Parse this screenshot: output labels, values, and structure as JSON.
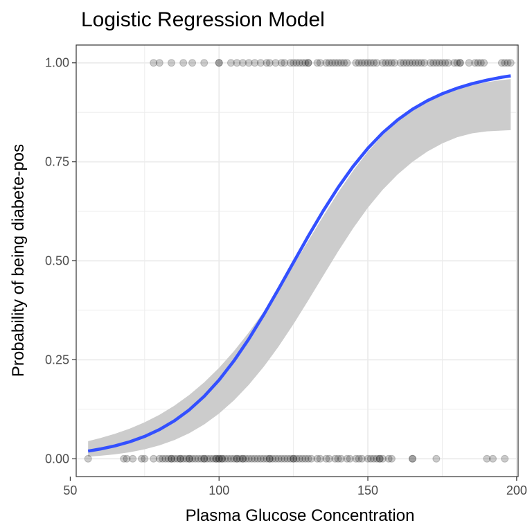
{
  "chart_data": {
    "type": "scatter",
    "title": "Logistic Regression Model",
    "xlabel": "Plasma Glucose Concentration",
    "ylabel": "Probability of being diabete-pos",
    "xlim": [
      52,
      200.5
    ],
    "ylim": [
      -0.045,
      1.045
    ],
    "x_ticks": [
      50,
      100,
      150,
      200
    ],
    "x_tick_labels": [
      "50",
      "100",
      "150",
      "200"
    ],
    "y_ticks": [
      0,
      0.25,
      0.5,
      0.75,
      1
    ],
    "y_tick_labels": [
      "0.00",
      "0.25",
      "0.50",
      "0.75",
      "1.00"
    ],
    "grid": true,
    "legend": "none",
    "colors": {
      "points": "#000000",
      "fit_line": "#3350ff",
      "confidence_band": "#cccccc",
      "grid": "#ebebeb",
      "panel_border": "#333333"
    },
    "series": [
      {
        "kind": "points",
        "y": 1,
        "x": [
          78,
          80,
          84,
          88,
          91,
          95,
          100,
          100,
          104,
          106,
          108,
          110,
          112,
          114,
          116,
          117,
          119,
          121,
          122,
          124,
          125,
          126,
          127,
          128,
          129,
          130,
          130,
          133,
          134,
          136,
          137,
          138,
          139,
          140,
          141,
          142,
          143,
          146,
          147,
          148,
          149,
          150,
          151,
          152,
          153,
          155,
          156,
          157,
          158,
          159,
          161,
          162,
          163,
          164,
          165,
          166,
          167,
          168,
          169,
          171,
          172,
          173,
          174,
          175,
          176,
          177,
          179,
          180,
          181,
          181,
          184,
          186,
          187,
          188,
          189,
          195,
          196,
          197,
          198
        ]
      },
      {
        "kind": "points",
        "y": 0,
        "x": [
          56,
          68,
          69,
          71,
          74,
          75,
          78,
          80,
          81,
          82,
          83,
          84,
          84,
          85,
          86,
          87,
          87,
          88,
          89,
          90,
          90,
          91,
          92,
          93,
          94,
          95,
          95,
          96,
          97,
          98,
          99,
          99,
          100,
          100,
          101,
          101,
          102,
          103,
          104,
          105,
          106,
          106,
          107,
          108,
          108,
          109,
          110,
          111,
          112,
          113,
          114,
          115,
          116,
          117,
          117,
          118,
          119,
          120,
          121,
          122,
          123,
          124,
          125,
          125,
          126,
          127,
          128,
          129,
          130,
          131,
          133,
          134,
          136,
          137,
          139,
          140,
          141,
          143,
          144,
          146,
          147,
          148,
          150,
          151,
          152,
          153,
          154,
          154,
          155,
          157,
          158,
          165,
          165,
          173,
          190,
          192,
          196
        ]
      },
      {
        "kind": "fit",
        "x": [
          56,
          60,
          65,
          70,
          75,
          80,
          85,
          90,
          95,
          100,
          105,
          110,
          115,
          120,
          125,
          130,
          135,
          140,
          145,
          150,
          155,
          160,
          165,
          170,
          175,
          180,
          185,
          190,
          195,
          198
        ],
        "y": [
          0.0194,
          0.0245,
          0.0325,
          0.0429,
          0.0564,
          0.0738,
          0.0959,
          0.1236,
          0.1577,
          0.1989,
          0.2473,
          0.3026,
          0.3637,
          0.4289,
          0.4959,
          0.5625,
          0.6262,
          0.6852,
          0.7381,
          0.7842,
          0.8234,
          0.856,
          0.8828,
          0.9045,
          0.922,
          0.936,
          0.9473,
          0.9563,
          0.9636,
          0.9671
        ],
        "comment_free_placeholder": null
      },
      {
        "kind": "band",
        "x": [
          56,
          60,
          65,
          70,
          75,
          80,
          85,
          90,
          95,
          100,
          105,
          110,
          115,
          120,
          125,
          130,
          135,
          140,
          145,
          150,
          155,
          160,
          165,
          170,
          175,
          180,
          185,
          190,
          195,
          198
        ],
        "lower": [
          0.0053,
          0.0075,
          0.0112,
          0.0165,
          0.0239,
          0.0339,
          0.0472,
          0.0645,
          0.0866,
          0.1141,
          0.1474,
          0.1868,
          0.2322,
          0.2834,
          0.3399,
          0.4002,
          0.4622,
          0.5236,
          0.5816,
          0.634,
          0.6795,
          0.718,
          0.75,
          0.776,
          0.7965,
          0.812,
          0.822,
          0.827,
          0.829,
          0.83
        ],
        "upper": [
          0.0445,
          0.0522,
          0.063,
          0.0762,
          0.0921,
          0.1112,
          0.1341,
          0.1612,
          0.193,
          0.2297,
          0.2718,
          0.3192,
          0.3716,
          0.4285,
          0.4888,
          0.5508,
          0.6127,
          0.6721,
          0.727,
          0.7758,
          0.8174,
          0.8518,
          0.8797,
          0.902,
          0.9196,
          0.9333,
          0.9437,
          0.9512,
          0.9566,
          0.959
        ]
      }
    ]
  }
}
